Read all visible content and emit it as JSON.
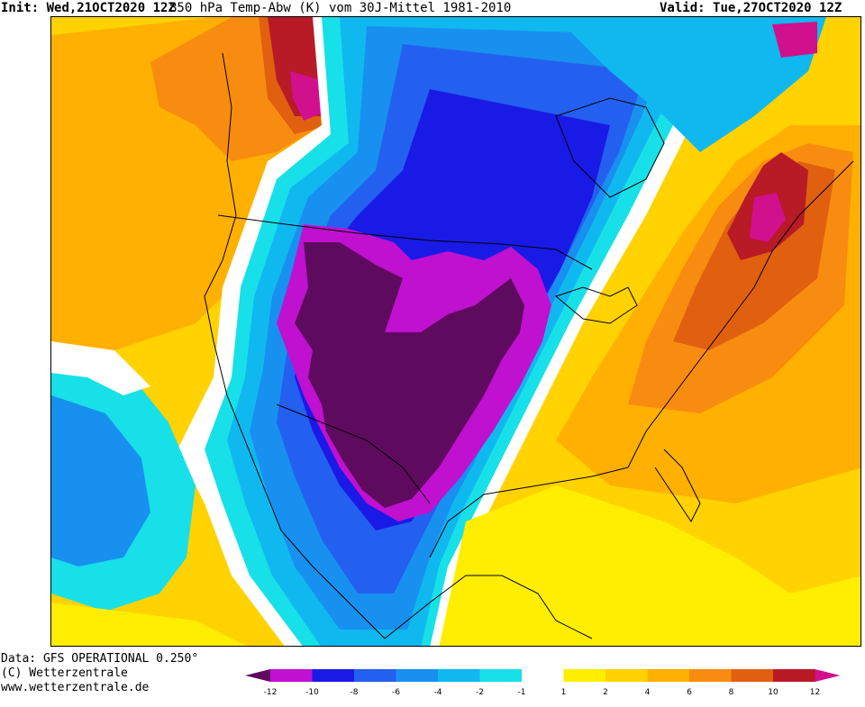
{
  "header": {
    "init_label": "Init:",
    "init_value": "Wed,21OCT2020 12Z",
    "title": "850 hPa Temp-Abw (K) vom 30J-Mittel 1981-2010",
    "valid_label": "Valid:",
    "valid_value": "Tue,27OCT2020 12Z"
  },
  "footer": {
    "data_source": "Data: GFS OPERATIONAL 0.250°",
    "copyright": "(C) Wetterzentrale",
    "website": "www.wetterzentrale.de"
  },
  "legend": {
    "ticks": [
      "-12",
      "-10",
      "-8",
      "-6",
      "-4",
      "-2",
      "-1",
      "1",
      "2",
      "4",
      "6",
      "8",
      "10",
      "12"
    ],
    "colors": {
      "lt_-12": "#5e0a5e",
      "-12_-10": "#c010d0",
      "-10_-8": "#1a1ae6",
      "-8_-6": "#2460f0",
      "-6_-4": "#1890f0",
      "-4_-2": "#10b8f0",
      "-2_-1": "#18e0e8",
      "-1_1": "#ffffff",
      "1_2": "#ffee00",
      "2_4": "#ffd200",
      "4_6": "#ffb000",
      "6_8": "#f88c10",
      "8_10": "#e06010",
      "10_12": "#b81a26",
      "gt_12": "#d0108c"
    }
  },
  "map": {
    "region": "North America",
    "variable": "850 hPa temperature anomaly",
    "units": "K",
    "cold_anomaly_center": "central United States / Great Plains",
    "warm_anomaly_centers": [
      "eastern United States and Canada",
      "Alaska / northeast Pacific",
      "Gulf of Mexico"
    ]
  }
}
